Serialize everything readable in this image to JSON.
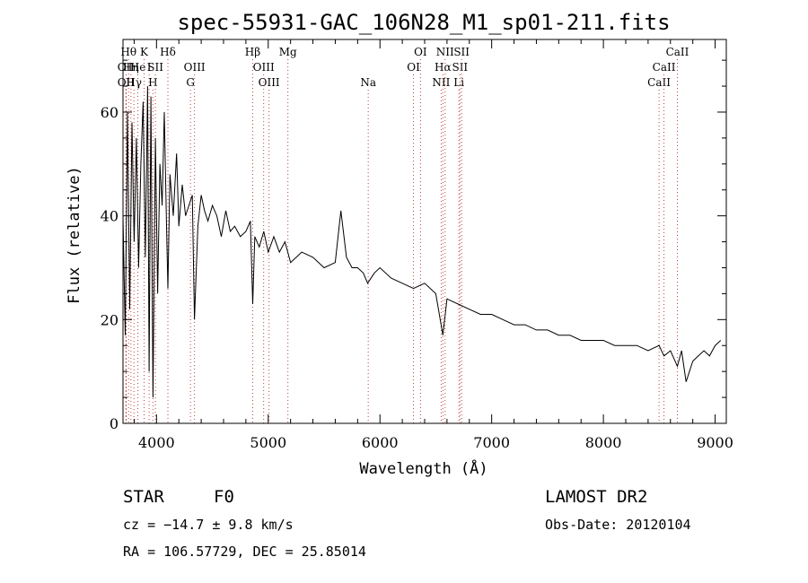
{
  "chart_data": {
    "type": "line",
    "title": "spec-55931-GAC_106N28_M1_sp01-211.fits",
    "xlabel": "Wavelength (Å)",
    "ylabel": "Flux (relative)",
    "xlim": [
      3700,
      9100
    ],
    "ylim": [
      0,
      74
    ],
    "xticks": [
      4000,
      5000,
      6000,
      7000,
      8000,
      9000
    ],
    "yticks": [
      0,
      20,
      40,
      60
    ],
    "grid": false,
    "series": [
      {
        "x": [
          3700,
          3720,
          3740,
          3760,
          3780,
          3800,
          3820,
          3840,
          3860,
          3880,
          3900,
          3920,
          3934,
          3950,
          3968,
          3990,
          4010,
          4030,
          4050,
          4070,
          4090,
          4102,
          4120,
          4150,
          4180,
          4200,
          4230,
          4260,
          4290,
          4320,
          4340,
          4370,
          4400,
          4430,
          4460,
          4500,
          4540,
          4580,
          4620,
          4660,
          4700,
          4750,
          4800,
          4840,
          4861,
          4880,
          4920,
          4960,
          5000,
          5050,
          5100,
          5150,
          5200,
          5300,
          5400,
          5500,
          5600,
          5650,
          5700,
          5750,
          5800,
          5850,
          5890,
          5950,
          6000,
          6100,
          6200,
          6300,
          6400,
          6500,
          6563,
          6600,
          6700,
          6800,
          6900,
          7000,
          7100,
          7200,
          7300,
          7400,
          7500,
          7600,
          7700,
          7800,
          7900,
          8000,
          8100,
          8200,
          8300,
          8400,
          8498,
          8542,
          8600,
          8662,
          8700,
          8740,
          8800,
          8850,
          8900,
          8950,
          9000,
          9050
        ],
        "y": [
          40,
          17,
          60,
          22,
          58,
          35,
          55,
          30,
          50,
          62,
          32,
          65,
          10,
          63,
          5,
          55,
          25,
          50,
          42,
          60,
          38,
          26,
          48,
          40,
          52,
          38,
          46,
          40,
          42,
          44,
          20,
          38,
          44,
          41,
          39,
          42,
          40,
          36,
          41,
          37,
          38,
          36,
          37,
          39,
          23,
          36,
          34,
          37,
          33,
          36,
          33,
          35,
          31,
          33,
          32,
          30,
          31,
          41,
          32,
          30,
          30,
          29,
          27,
          29,
          30,
          28,
          27,
          26,
          27,
          25,
          17,
          24,
          23,
          22,
          21,
          21,
          20,
          19,
          19,
          18,
          18,
          17,
          17,
          16,
          16,
          16,
          15,
          15,
          15,
          14,
          15,
          13,
          14,
          11,
          14,
          8,
          12,
          13,
          14,
          13,
          15,
          16
        ]
      }
    ],
    "lines": [
      {
        "wl": 3727,
        "label": "OII",
        "row": 1
      },
      {
        "wl": 3727,
        "label": "OII",
        "row": 2
      },
      {
        "wl": 3750,
        "label": "Hθ",
        "row": 0
      },
      {
        "wl": 3771,
        "label": "Hη",
        "row": 1
      },
      {
        "wl": 3798,
        "label": "Hγ",
        "row": 2
      },
      {
        "wl": 3833,
        "label": "He",
        "row": 1
      },
      {
        "wl": 3889,
        "label": "K",
        "row": 0
      },
      {
        "wl": 3934,
        "label": "I",
        "row": 1
      },
      {
        "wl": 3968,
        "label": "H",
        "row": 2
      },
      {
        "wl": 3990,
        "label": "SII",
        "row": 1
      },
      {
        "wl": 4102,
        "label": "Hδ",
        "row": 0
      },
      {
        "wl": 4304,
        "label": "G",
        "row": 2
      },
      {
        "wl": 4340,
        "label": "OIII",
        "row": 1
      },
      {
        "wl": 4861,
        "label": "Hβ",
        "row": 0
      },
      {
        "wl": 4959,
        "label": "OIII",
        "row": 1
      },
      {
        "wl": 5007,
        "label": "OIII",
        "row": 2
      },
      {
        "wl": 5176,
        "label": "Mg",
        "row": 0
      },
      {
        "wl": 5895,
        "label": "Na",
        "row": 2
      },
      {
        "wl": 6300,
        "label": "OI",
        "row": 1
      },
      {
        "wl": 6363,
        "label": "OI",
        "row": 0
      },
      {
        "wl": 6548,
        "label": "NII",
        "row": 2
      },
      {
        "wl": 6563,
        "label": "Hα",
        "row": 1
      },
      {
        "wl": 6583,
        "label": "NII",
        "row": 0
      },
      {
        "wl": 6707,
        "label": "Li",
        "row": 2
      },
      {
        "wl": 6716,
        "label": "SII",
        "row": 1
      },
      {
        "wl": 6731,
        "label": "SII",
        "row": 0
      },
      {
        "wl": 8498,
        "label": "CaII",
        "row": 2
      },
      {
        "wl": 8542,
        "label": "CaII",
        "row": 1
      },
      {
        "wl": 8662,
        "label": "CaII",
        "row": 0
      }
    ]
  },
  "info": {
    "class": "STAR",
    "subclass": "F0",
    "survey": "LAMOST DR2",
    "cz": "cz = −14.7 ± 9.8 km/s",
    "obsdate": "Obs-Date: 20120104",
    "radec": "RA = 106.57729, DEC =  25.85014"
  }
}
